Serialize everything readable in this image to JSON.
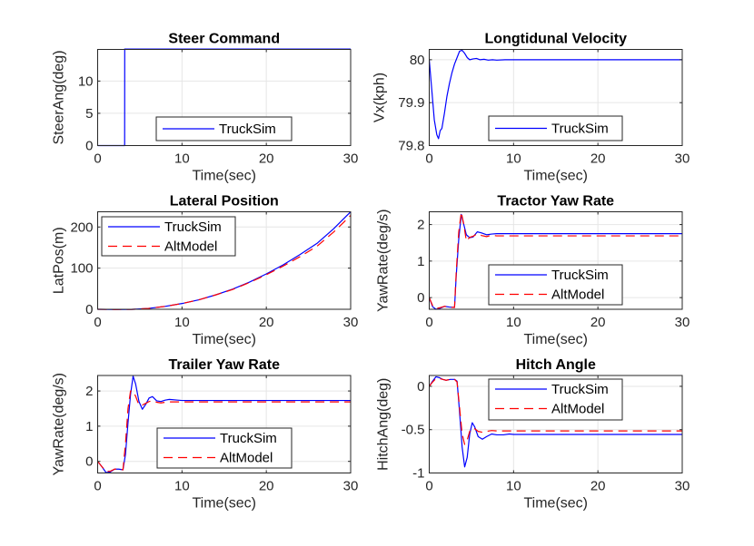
{
  "figure": {
    "background": "#ffffff"
  },
  "colors": {
    "TruckSim": "#0000ff",
    "AltModel": "#ff0000",
    "grid": "#e6e6e6",
    "axis": "#262626"
  },
  "chart_data": [
    {
      "type": "line",
      "title": "Steer Command",
      "xlabel": "Time(sec)",
      "ylabel": "SteerAng(deg)",
      "xlim": [
        0,
        30
      ],
      "ylim": [
        0,
        14.9
      ],
      "xticks": [
        0,
        10,
        20,
        30
      ],
      "yticks": [
        0,
        5,
        10
      ],
      "xtick_labels": [
        "0",
        "10",
        "20",
        "30"
      ],
      "ytick_labels": [
        "0",
        "5",
        "10"
      ],
      "grid": true,
      "legend": "bottom-center",
      "series": [
        {
          "name": "TruckSim",
          "style": "solid",
          "x": [
            0,
            3.2,
            3.21,
            30
          ],
          "y": [
            0,
            0,
            15,
            15
          ]
        }
      ]
    },
    {
      "type": "line",
      "title": "Longtidunal Velocity",
      "xlabel": "Time(sec)",
      "ylabel": "Vx(kph)",
      "xlim": [
        0,
        30
      ],
      "ylim": [
        79.8,
        80.024
      ],
      "xticks": [
        0,
        10,
        20,
        30
      ],
      "yticks": [
        79.8,
        79.9,
        80
      ],
      "xtick_labels": [
        "0",
        "10",
        "20",
        "30"
      ],
      "ytick_labels": [
        "79.8",
        "79.9",
        "80"
      ],
      "grid": true,
      "legend": "bottom-center",
      "series": [
        {
          "name": "TruckSim",
          "style": "solid",
          "x": [
            0,
            0.3,
            0.6,
            0.9,
            1.1,
            1.3,
            1.5,
            1.8,
            2.1,
            2.4,
            2.7,
            3.0,
            3.3,
            3.6,
            3.9,
            4.2,
            4.5,
            4.8,
            5.2,
            5.6,
            6.0,
            6.5,
            7.0,
            7.5,
            8.0,
            9.0,
            10,
            15,
            20,
            30
          ],
          "y": [
            80.0,
            79.93,
            79.86,
            79.825,
            79.816,
            79.835,
            79.84,
            79.875,
            79.915,
            79.945,
            79.97,
            79.99,
            80.005,
            80.02,
            80.022,
            80.015,
            80.005,
            80.0,
            80.002,
            80.003,
            80.0,
            80.001,
            79.999,
            80.0,
            79.999,
            80.0,
            80.0,
            80.0,
            80.0,
            80.0
          ]
        }
      ]
    },
    {
      "type": "line",
      "title": "Lateral Position",
      "xlabel": "Time(sec)",
      "ylabel": "LatPos(m)",
      "xlim": [
        0,
        30
      ],
      "ylim": [
        0,
        237
      ],
      "xticks": [
        0,
        10,
        20,
        30
      ],
      "yticks": [
        0,
        100,
        200
      ],
      "xtick_labels": [
        "0",
        "10",
        "20",
        "30"
      ],
      "ytick_labels": [
        "0",
        "100",
        "200"
      ],
      "grid": true,
      "legend": "top-left",
      "series": [
        {
          "name": "TruckSim",
          "style": "solid",
          "x": [
            0,
            2,
            4,
            6,
            8,
            10,
            12,
            14,
            16,
            18,
            20,
            22,
            24,
            26,
            28,
            30
          ],
          "y": [
            0,
            -0.5,
            -0.3,
            2,
            7,
            14,
            23,
            35,
            49,
            66,
            86,
            108,
            133,
            160,
            196,
            237
          ]
        },
        {
          "name": "AltModel",
          "style": "dashed",
          "x": [
            0,
            2,
            4,
            6,
            8,
            10,
            12,
            14,
            16,
            18,
            20,
            22,
            24,
            26,
            28,
            30
          ],
          "y": [
            0,
            -0.5,
            -0.3,
            2,
            7,
            14,
            23,
            35,
            48,
            65,
            84,
            105,
            128,
            153,
            188,
            228
          ]
        }
      ]
    },
    {
      "type": "line",
      "title": "Tractor Yaw Rate",
      "xlabel": "Time(sec)",
      "ylabel": "YawRate(deg/s)",
      "xlim": [
        0,
        30
      ],
      "ylim": [
        -0.32,
        2.35
      ],
      "xticks": [
        0,
        10,
        20,
        30
      ],
      "yticks": [
        0,
        1,
        2
      ],
      "xtick_labels": [
        "0",
        "10",
        "20",
        "30"
      ],
      "ytick_labels": [
        "0",
        "1",
        "2"
      ],
      "grid": true,
      "legend": "bottom-center",
      "series": [
        {
          "name": "TruckSim",
          "style": "solid",
          "x": [
            0,
            0.4,
            0.8,
            1.2,
            1.8,
            2.4,
            3.0,
            3.2,
            3.5,
            3.8,
            4.1,
            4.4,
            4.8,
            5.2,
            5.7,
            6.2,
            6.8,
            7.4,
            8.0,
            9.0,
            10,
            15,
            20,
            30
          ],
          "y": [
            0,
            -0.25,
            -0.32,
            -0.3,
            -0.24,
            -0.26,
            -0.27,
            0.6,
            1.6,
            2.28,
            2.0,
            1.72,
            1.64,
            1.66,
            1.8,
            1.77,
            1.72,
            1.74,
            1.75,
            1.75,
            1.75,
            1.75,
            1.75,
            1.75
          ]
        },
        {
          "name": "AltModel",
          "style": "dashed",
          "x": [
            0,
            0.4,
            0.8,
            1.2,
            1.8,
            2.4,
            3.0,
            3.2,
            3.5,
            3.8,
            4.1,
            4.4,
            4.8,
            5.2,
            5.7,
            6.2,
            6.8,
            7.4,
            8.0,
            9.0,
            10,
            15,
            20,
            30
          ],
          "y": [
            0,
            -0.22,
            -0.3,
            -0.28,
            -0.24,
            -0.26,
            -0.27,
            0.7,
            1.8,
            2.34,
            2.0,
            1.55,
            1.65,
            1.68,
            1.75,
            1.7,
            1.67,
            1.71,
            1.69,
            1.69,
            1.69,
            1.69,
            1.69,
            1.69
          ]
        }
      ]
    },
    {
      "type": "line",
      "title": "Trailer Yaw Rate",
      "xlabel": "Time(sec)",
      "ylabel": "YawRate(deg/s)",
      "xlim": [
        0,
        30
      ],
      "ylim": [
        -0.33,
        2.44
      ],
      "xticks": [
        0,
        10,
        20,
        30
      ],
      "yticks": [
        0,
        1,
        2
      ],
      "xtick_labels": [
        "0",
        "10",
        "20",
        "30"
      ],
      "ytick_labels": [
        "0",
        "1",
        "2"
      ],
      "grid": true,
      "legend": "bottom-center",
      "series": [
        {
          "name": "TruckSim",
          "style": "solid",
          "x": [
            0,
            0.5,
            1.0,
            1.5,
            2.0,
            2.5,
            3.0,
            3.3,
            3.6,
            3.9,
            4.2,
            4.5,
            4.9,
            5.3,
            5.7,
            6.1,
            6.5,
            7.0,
            7.5,
            8.0,
            8.5,
            9.5,
            10,
            15,
            20,
            30
          ],
          "y": [
            0,
            -0.15,
            -0.32,
            -0.3,
            -0.22,
            -0.22,
            -0.24,
            0.2,
            1.1,
            1.9,
            2.42,
            2.2,
            1.7,
            1.48,
            1.62,
            1.8,
            1.84,
            1.72,
            1.7,
            1.74,
            1.76,
            1.74,
            1.73,
            1.73,
            1.73,
            1.73
          ]
        },
        {
          "name": "AltModel",
          "style": "dashed",
          "x": [
            0,
            0.5,
            1.0,
            1.5,
            2.0,
            2.5,
            3.0,
            3.3,
            3.6,
            3.9,
            4.2,
            4.5,
            4.9,
            5.3,
            5.7,
            6.1,
            6.5,
            7.0,
            7.5,
            8.0,
            8.5,
            9.5,
            10,
            15,
            20,
            30
          ],
          "y": [
            0,
            -0.15,
            -0.28,
            -0.28,
            -0.22,
            -0.22,
            -0.24,
            0.5,
            1.5,
            2.0,
            2.0,
            1.85,
            1.6,
            1.6,
            1.65,
            1.7,
            1.72,
            1.68,
            1.66,
            1.68,
            1.69,
            1.69,
            1.69,
            1.69,
            1.69,
            1.69
          ]
        }
      ]
    },
    {
      "type": "line",
      "title": "Hitch Angle",
      "xlabel": "Time(sec)",
      "ylabel": "HitchAng(deg)",
      "xlim": [
        0,
        30
      ],
      "ylim": [
        -1,
        0.125
      ],
      "xticks": [
        0,
        10,
        20,
        30
      ],
      "yticks": [
        -1,
        -0.5,
        0
      ],
      "xtick_labels": [
        "0",
        "10",
        "20",
        "30"
      ],
      "ytick_labels": [
        "-1",
        "-0.5",
        "0"
      ],
      "grid": true,
      "legend": "top-center",
      "series": [
        {
          "name": "TruckSim",
          "style": "solid",
          "x": [
            0,
            0.4,
            0.8,
            1.2,
            1.6,
            2.0,
            2.5,
            3.0,
            3.3,
            3.6,
            3.9,
            4.2,
            4.5,
            4.8,
            5.1,
            5.4,
            5.8,
            6.3,
            6.8,
            7.4,
            8.0,
            8.8,
            9.5,
            10,
            15,
            20,
            30
          ],
          "y": [
            0,
            0.06,
            0.11,
            0.1,
            0.08,
            0.07,
            0.08,
            0.08,
            0.06,
            -0.3,
            -0.7,
            -0.93,
            -0.82,
            -0.55,
            -0.42,
            -0.47,
            -0.58,
            -0.61,
            -0.58,
            -0.55,
            -0.56,
            -0.56,
            -0.55,
            -0.555,
            -0.555,
            -0.555,
            -0.555
          ]
        },
        {
          "name": "AltModel",
          "style": "dashed",
          "x": [
            0,
            0.4,
            0.8,
            1.2,
            1.6,
            2.0,
            2.5,
            3.0,
            3.3,
            3.6,
            3.9,
            4.2,
            4.5,
            4.8,
            5.1,
            5.4,
            5.8,
            6.3,
            6.8,
            7.4,
            8.0,
            8.8,
            9.5,
            10,
            15,
            20,
            30
          ],
          "y": [
            0,
            0.05,
            0.09,
            0.09,
            0.08,
            0.07,
            0.08,
            0.08,
            0.05,
            -0.25,
            -0.55,
            -0.67,
            -0.62,
            -0.52,
            -0.48,
            -0.49,
            -0.52,
            -0.53,
            -0.52,
            -0.51,
            -0.515,
            -0.515,
            -0.515,
            -0.515,
            -0.515,
            -0.515,
            -0.515
          ]
        }
      ]
    }
  ]
}
